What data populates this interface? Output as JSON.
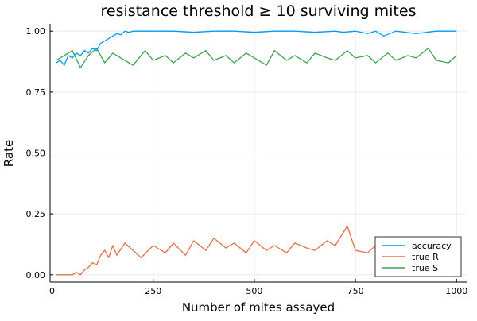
{
  "chart_data": {
    "type": "line",
    "title": "resistance threshold ≥ 10 surviving mites",
    "xlabel": "Number of mites assayed",
    "ylabel": "Rate",
    "xlim": [
      -5,
      1025
    ],
    "ylim": [
      -0.03,
      1.03
    ],
    "x_ticks": [
      0,
      250,
      500,
      750,
      1000
    ],
    "x_tick_labels": [
      "0",
      "250",
      "500",
      "750",
      "1000"
    ],
    "y_ticks": [
      0,
      0.25,
      0.5,
      0.75,
      1.0
    ],
    "y_tick_labels": [
      "0.00",
      "0.25",
      "0.50",
      "0.75",
      "1.00"
    ],
    "grid": true,
    "legend_position": "bottom-right",
    "series": [
      {
        "name": "accuracy",
        "color": "#009AFA",
        "x": [
          10,
          20,
          30,
          40,
          50,
          60,
          70,
          80,
          90,
          100,
          110,
          120,
          130,
          140,
          150,
          160,
          170,
          180,
          190,
          200,
          250,
          300,
          350,
          400,
          450,
          500,
          550,
          600,
          650,
          700,
          720,
          750,
          780,
          800,
          820,
          850,
          900,
          950,
          1000
        ],
        "values": [
          0.87,
          0.88,
          0.86,
          0.9,
          0.89,
          0.91,
          0.9,
          0.92,
          0.91,
          0.93,
          0.92,
          0.95,
          0.96,
          0.97,
          0.98,
          0.99,
          0.985,
          1.0,
          0.995,
          1.0,
          1.0,
          1.0,
          0.995,
          1.0,
          1.0,
          0.995,
          1.0,
          1.0,
          0.995,
          1.0,
          0.995,
          1.0,
          0.99,
          1.0,
          0.98,
          1.0,
          0.99,
          1.0,
          1.0
        ]
      },
      {
        "name": "true R",
        "color": "#E26F46",
        "x": [
          10,
          30,
          50,
          60,
          70,
          80,
          90,
          100,
          110,
          120,
          130,
          140,
          150,
          160,
          180,
          200,
          220,
          250,
          280,
          300,
          330,
          350,
          380,
          400,
          430,
          450,
          480,
          500,
          530,
          550,
          580,
          600,
          630,
          650,
          680,
          700,
          730,
          750,
          780,
          800,
          830,
          850,
          880,
          900,
          930,
          950,
          980,
          1000
        ],
        "values": [
          0.0,
          0.0,
          0.0,
          0.01,
          0.0,
          0.02,
          0.03,
          0.05,
          0.04,
          0.08,
          0.1,
          0.07,
          0.12,
          0.08,
          0.13,
          0.1,
          0.07,
          0.12,
          0.09,
          0.13,
          0.08,
          0.14,
          0.1,
          0.15,
          0.11,
          0.13,
          0.09,
          0.14,
          0.1,
          0.12,
          0.09,
          0.13,
          0.11,
          0.1,
          0.14,
          0.12,
          0.2,
          0.1,
          0.09,
          0.12,
          0.1,
          0.11,
          0.09,
          0.12,
          0.1,
          0.11,
          0.1,
          0.05
        ]
      },
      {
        "name": "true S",
        "color": "#3DA44D",
        "x": [
          10,
          30,
          50,
          70,
          90,
          110,
          130,
          150,
          170,
          200,
          230,
          250,
          280,
          300,
          330,
          350,
          380,
          400,
          430,
          450,
          480,
          500,
          530,
          550,
          580,
          600,
          630,
          650,
          680,
          700,
          730,
          750,
          780,
          800,
          830,
          850,
          880,
          900,
          930,
          950,
          980,
          1000
        ],
        "values": [
          0.88,
          0.9,
          0.92,
          0.85,
          0.9,
          0.93,
          0.87,
          0.91,
          0.89,
          0.86,
          0.92,
          0.88,
          0.9,
          0.87,
          0.91,
          0.89,
          0.92,
          0.88,
          0.9,
          0.87,
          0.91,
          0.89,
          0.86,
          0.92,
          0.88,
          0.9,
          0.87,
          0.91,
          0.89,
          0.88,
          0.92,
          0.89,
          0.9,
          0.87,
          0.91,
          0.88,
          0.9,
          0.89,
          0.93,
          0.88,
          0.87,
          0.9
        ]
      }
    ]
  }
}
